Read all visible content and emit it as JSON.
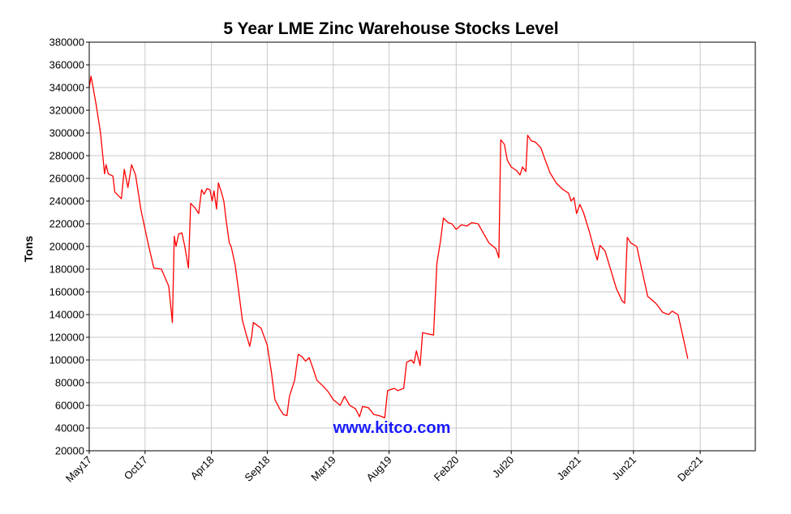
{
  "chart_data": {
    "type": "line",
    "title": "5 Year LME Zinc Warehouse Stocks Level",
    "xlabel": "",
    "ylabel": "Tons",
    "ylim": [
      20000,
      380000
    ],
    "yticks": [
      20000,
      40000,
      60000,
      80000,
      100000,
      120000,
      140000,
      160000,
      180000,
      200000,
      220000,
      240000,
      260000,
      280000,
      300000,
      320000,
      340000,
      360000,
      380000
    ],
    "xlim": [
      "2017-05",
      "2022-05"
    ],
    "xticks": [
      {
        "label": "May17",
        "x": "2017-05"
      },
      {
        "label": "Oct17",
        "x": "2017-10"
      },
      {
        "label": "Apr18",
        "x": "2018-04"
      },
      {
        "label": "Sep18",
        "x": "2018-09"
      },
      {
        "label": "Mar19",
        "x": "2019-03"
      },
      {
        "label": "Aug19",
        "x": "2019-08"
      },
      {
        "label": "Feb20",
        "x": "2020-02"
      },
      {
        "label": "Jul20",
        "x": "2020-07"
      },
      {
        "label": "Jan21",
        "x": "2021-01"
      },
      {
        "label": "Jun21",
        "x": "2021-06"
      },
      {
        "label": "Dec21",
        "x": "2021-12"
      }
    ],
    "grid": true,
    "watermark": "www.kitco.com",
    "colors": {
      "line": "#ff0000",
      "watermark": "#1a1aff",
      "grid": "#c8c8c8"
    },
    "series": [
      {
        "values": [
          [
            "2017-05-01",
            340000
          ],
          [
            "2017-05-06",
            350000
          ],
          [
            "2017-05-10",
            343000
          ],
          [
            "2017-05-20",
            325000
          ],
          [
            "2017-06-01",
            300000
          ],
          [
            "2017-06-12",
            264000
          ],
          [
            "2017-06-16",
            272000
          ],
          [
            "2017-06-22",
            264000
          ],
          [
            "2017-07-05",
            262000
          ],
          [
            "2017-07-10",
            248000
          ],
          [
            "2017-07-28",
            242000
          ],
          [
            "2017-08-05",
            268000
          ],
          [
            "2017-08-15",
            252000
          ],
          [
            "2017-08-25",
            272000
          ],
          [
            "2017-09-05",
            263000
          ],
          [
            "2017-09-20",
            232000
          ],
          [
            "2017-10-10",
            202000
          ],
          [
            "2017-10-25",
            181000
          ],
          [
            "2017-11-15",
            180000
          ],
          [
            "2017-12-05",
            165000
          ],
          [
            "2017-12-15",
            133000
          ],
          [
            "2017-12-20",
            209000
          ],
          [
            "2017-12-25",
            200000
          ],
          [
            "2018-01-01",
            211000
          ],
          [
            "2018-01-10",
            212000
          ],
          [
            "2018-01-18",
            200000
          ],
          [
            "2018-01-28",
            181000
          ],
          [
            "2018-02-03",
            238000
          ],
          [
            "2018-02-15",
            234000
          ],
          [
            "2018-02-25",
            229000
          ],
          [
            "2018-03-05",
            250000
          ],
          [
            "2018-03-12",
            246000
          ],
          [
            "2018-03-20",
            251000
          ],
          [
            "2018-03-28",
            250000
          ],
          [
            "2018-04-03",
            240000
          ],
          [
            "2018-04-08",
            249000
          ],
          [
            "2018-04-15",
            233000
          ],
          [
            "2018-04-20",
            256000
          ],
          [
            "2018-04-28",
            248000
          ],
          [
            "2018-05-05",
            240000
          ],
          [
            "2018-05-12",
            221000
          ],
          [
            "2018-05-20",
            203000
          ],
          [
            "2018-05-25",
            200000
          ],
          [
            "2018-06-05",
            184000
          ],
          [
            "2018-06-15",
            160000
          ],
          [
            "2018-06-25",
            135000
          ],
          [
            "2018-07-05",
            123000
          ],
          [
            "2018-07-15",
            112000
          ],
          [
            "2018-07-20",
            120000
          ],
          [
            "2018-07-25",
            133000
          ],
          [
            "2018-08-15",
            128000
          ],
          [
            "2018-09-01",
            113000
          ],
          [
            "2018-09-12",
            90000
          ],
          [
            "2018-09-22",
            65000
          ],
          [
            "2018-10-05",
            57000
          ],
          [
            "2018-10-15",
            52000
          ],
          [
            "2018-10-25",
            51000
          ],
          [
            "2018-11-01",
            68000
          ],
          [
            "2018-11-15",
            82000
          ],
          [
            "2018-11-25",
            105000
          ],
          [
            "2018-12-05",
            103000
          ],
          [
            "2018-12-15",
            99000
          ],
          [
            "2018-12-25",
            102000
          ],
          [
            "2019-01-05",
            92000
          ],
          [
            "2019-01-15",
            82000
          ],
          [
            "2019-02-01",
            77000
          ],
          [
            "2019-02-15",
            72000
          ],
          [
            "2019-03-01",
            65000
          ],
          [
            "2019-03-20",
            60000
          ],
          [
            "2019-04-01",
            68000
          ],
          [
            "2019-04-15",
            60000
          ],
          [
            "2019-05-01",
            57000
          ],
          [
            "2019-05-12",
            50000
          ],
          [
            "2019-05-20",
            59000
          ],
          [
            "2019-06-05",
            58000
          ],
          [
            "2019-06-20",
            52000
          ],
          [
            "2019-07-05",
            51000
          ],
          [
            "2019-07-20",
            49000
          ],
          [
            "2019-07-28",
            73000
          ],
          [
            "2019-08-15",
            75000
          ],
          [
            "2019-08-25",
            73000
          ],
          [
            "2019-09-10",
            75000
          ],
          [
            "2019-09-18",
            98000
          ],
          [
            "2019-10-01",
            100000
          ],
          [
            "2019-10-08",
            97000
          ],
          [
            "2019-10-15",
            108000
          ],
          [
            "2019-10-25",
            95000
          ],
          [
            "2019-11-01",
            124000
          ],
          [
            "2019-11-15",
            123000
          ],
          [
            "2019-12-01",
            122000
          ],
          [
            "2019-12-10",
            185000
          ],
          [
            "2019-12-20",
            205000
          ],
          [
            "2019-12-28",
            225000
          ],
          [
            "2020-01-10",
            221000
          ],
          [
            "2020-01-20",
            220000
          ],
          [
            "2020-02-01",
            215000
          ],
          [
            "2020-02-15",
            219000
          ],
          [
            "2020-03-01",
            218000
          ],
          [
            "2020-03-15",
            221000
          ],
          [
            "2020-04-01",
            220000
          ],
          [
            "2020-04-15",
            212000
          ],
          [
            "2020-05-01",
            203000
          ],
          [
            "2020-05-20",
            198000
          ],
          [
            "2020-05-28",
            190000
          ],
          [
            "2020-06-02",
            294000
          ],
          [
            "2020-06-12",
            290000
          ],
          [
            "2020-06-20",
            276000
          ],
          [
            "2020-07-01",
            270000
          ],
          [
            "2020-07-15",
            267000
          ],
          [
            "2020-07-25",
            263000
          ],
          [
            "2020-08-01",
            270000
          ],
          [
            "2020-08-10",
            266000
          ],
          [
            "2020-08-15",
            298000
          ],
          [
            "2020-08-25",
            293000
          ],
          [
            "2020-09-05",
            292000
          ],
          [
            "2020-09-20",
            287000
          ],
          [
            "2020-10-01",
            277000
          ],
          [
            "2020-10-15",
            265000
          ],
          [
            "2020-11-01",
            256000
          ],
          [
            "2020-11-20",
            250000
          ],
          [
            "2020-12-05",
            247000
          ],
          [
            "2020-12-12",
            240000
          ],
          [
            "2020-12-20",
            243000
          ],
          [
            "2020-12-27",
            229000
          ],
          [
            "2021-01-05",
            237000
          ],
          [
            "2021-01-15",
            230000
          ],
          [
            "2021-02-01",
            212000
          ],
          [
            "2021-02-15",
            195000
          ],
          [
            "2021-02-22",
            188000
          ],
          [
            "2021-03-01",
            201000
          ],
          [
            "2021-03-15",
            196000
          ],
          [
            "2021-04-01",
            178000
          ],
          [
            "2021-04-15",
            163000
          ],
          [
            "2021-05-01",
            152000
          ],
          [
            "2021-05-08",
            150000
          ],
          [
            "2021-05-15",
            208000
          ],
          [
            "2021-05-25",
            203000
          ],
          [
            "2021-06-10",
            200000
          ],
          [
            "2021-06-25",
            178000
          ],
          [
            "2021-07-10",
            156000
          ],
          [
            "2021-08-01",
            150000
          ],
          [
            "2021-08-20",
            142000
          ],
          [
            "2021-09-05",
            140000
          ],
          [
            "2021-09-15",
            143000
          ],
          [
            "2021-10-01",
            140000
          ],
          [
            "2021-10-15",
            120000
          ],
          [
            "2021-10-28",
            101000
          ]
        ]
      }
    ]
  }
}
